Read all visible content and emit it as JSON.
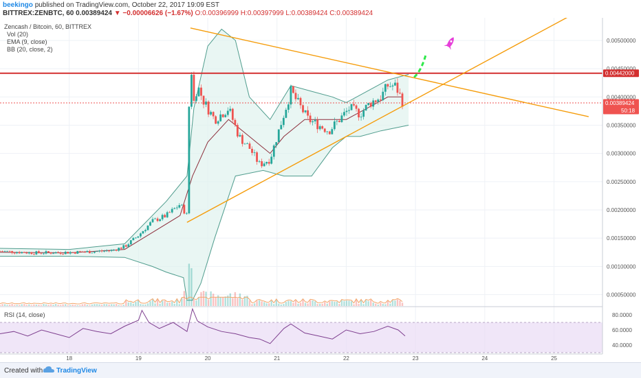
{
  "header": {
    "author": "beekingo",
    "published": "published on TradingView.com, October 22, 2017 19:09 EST",
    "symbol": "BITTREX:ZENBTC, 60",
    "price": "0.00389424",
    "change": "▼ −0.00006626 (−1.67%)",
    "open": "O:0.00396999",
    "high": "H:0.00397999",
    "low": "L:0.00389424",
    "close": "C:0.00389424"
  },
  "legend": {
    "title": "Zencash / Bitcoin, 60, BITTREX",
    "vol": "Vol (20)",
    "ema": "EMA (9, close)",
    "bb": "BB (20, close, 2)",
    "rsi": "RSI (14, close)"
  },
  "footer": {
    "created": "Created with",
    "brand": "TradingView"
  },
  "colors": {
    "up": "#26a69a",
    "down": "#ef5350",
    "bb": "#4f9c8d",
    "ema": "#8d2f3c",
    "trendline": "#f59c0a",
    "resistance": "#d32f2f",
    "rsi": "#7e3f8f",
    "rsi_band": "#eadcf5",
    "volume_ma": "#f2a66a"
  },
  "chart_data": {
    "type": "candlestick",
    "x_tick_labels": [
      "18",
      "19",
      "20",
      "21",
      "22",
      "23",
      "24",
      "25"
    ],
    "x_range_days": [
      17.0,
      25.7
    ],
    "price_ylim": [
      0.0003,
      0.0054
    ],
    "price_tick_labels": [
      "0.00500000",
      "0.00450000",
      "0.00400000",
      "0.00350000",
      "0.00300000",
      "0.00250000",
      "0.00200000",
      "0.00150000",
      "0.00100000",
      "0.00050000"
    ],
    "price_tick_values": [
      0.005,
      0.0045,
      0.004,
      0.0035,
      0.003,
      0.0025,
      0.002,
      0.0015,
      0.001,
      0.0005
    ],
    "last_price": {
      "value": 0.00389424,
      "label": "0.00389424",
      "countdown": "50:18"
    },
    "resistance": {
      "value": 0.00442,
      "label": "0.00442000"
    },
    "close_series": {
      "x": [
        17.0,
        17.5,
        18.0,
        18.3,
        18.6,
        18.8,
        19.0,
        19.2,
        19.4,
        19.6,
        19.7,
        19.72,
        19.75,
        19.78,
        19.85,
        19.95,
        20.1,
        20.3,
        20.45,
        20.6,
        20.75,
        20.9,
        21.05,
        21.2,
        21.3,
        21.45,
        21.6,
        21.75,
        21.9,
        22.05,
        22.2,
        22.35,
        22.5,
        22.6,
        22.7,
        22.75,
        22.82
      ],
      "y": [
        0.00127,
        0.00124,
        0.00125,
        0.00126,
        0.00128,
        0.00135,
        0.00155,
        0.0018,
        0.0019,
        0.0021,
        0.0019,
        0.0032,
        0.0051,
        0.0038,
        0.0042,
        0.0039,
        0.0036,
        0.0038,
        0.0033,
        0.0031,
        0.0028,
        0.0029,
        0.0035,
        0.0041,
        0.0039,
        0.0036,
        0.0035,
        0.0034,
        0.0036,
        0.0038,
        0.0037,
        0.0039,
        0.004,
        0.0042,
        0.0042,
        0.0041,
        0.00389
      ]
    },
    "bb_upper": {
      "x": [
        17.0,
        18.0,
        18.8,
        19.4,
        19.7,
        19.8,
        20.0,
        20.2,
        20.4,
        20.6,
        20.9,
        21.2,
        21.5,
        21.8,
        22.0,
        22.3,
        22.6,
        22.9
      ],
      "y": [
        0.00132,
        0.0013,
        0.0014,
        0.00215,
        0.0026,
        0.0038,
        0.0049,
        0.0052,
        0.005,
        0.004,
        0.0036,
        0.0042,
        0.0041,
        0.004,
        0.0039,
        0.0041,
        0.0043,
        0.0044
      ]
    },
    "bb_lower": {
      "x": [
        17.0,
        18.0,
        18.8,
        19.2,
        19.4,
        19.65,
        19.7,
        19.78,
        19.9,
        20.1,
        20.4,
        20.8,
        21.1,
        21.5,
        21.8,
        22.0,
        22.2,
        22.5,
        22.9
      ],
      "y": [
        0.00118,
        0.00118,
        0.00116,
        0.001,
        0.0009,
        0.0008,
        0.0004,
        0.0004,
        0.0007,
        0.0015,
        0.0026,
        0.0027,
        0.0026,
        0.0026,
        0.0031,
        0.0033,
        0.0033,
        0.0034,
        0.0035
      ]
    },
    "ema": {
      "x": [
        17.0,
        18.0,
        18.8,
        19.2,
        19.6,
        19.78,
        20.0,
        20.3,
        20.6,
        20.9,
        21.1,
        21.4,
        21.7,
        22.0,
        22.3,
        22.6,
        22.82
      ],
      "y": [
        0.00125,
        0.00124,
        0.0013,
        0.0016,
        0.0019,
        0.0026,
        0.0032,
        0.0036,
        0.0033,
        0.003,
        0.0033,
        0.0036,
        0.0036,
        0.0036,
        0.0038,
        0.004,
        0.004
      ]
    },
    "trendlines": [
      {
        "name": "",
        "x": [
          19.75,
          25.5
        ],
        "y": [
          0.00522,
          0.00365
        ]
      },
      {
        "name": "",
        "x": [
          19.7,
          25.3
        ],
        "y": [
          0.00178,
          0.00548
        ]
      }
    ],
    "projection": {
      "x": [
        22.98,
        23.15
      ],
      "y": [
        0.00435,
        0.00475
      ]
    },
    "rsi": {
      "ylim": [
        30,
        90
      ],
      "tick_values": [
        80,
        60,
        40
      ],
      "tick_labels": [
        "80.0000",
        "60.0000",
        "40.0000"
      ],
      "band": [
        30,
        70
      ],
      "x": [
        17.0,
        17.2,
        17.4,
        17.6,
        17.8,
        18.0,
        18.2,
        18.4,
        18.6,
        18.8,
        19.0,
        19.05,
        19.15,
        19.3,
        19.5,
        19.7,
        19.78,
        19.85,
        20.0,
        20.2,
        20.4,
        20.6,
        20.75,
        20.9,
        21.1,
        21.2,
        21.4,
        21.6,
        21.8,
        22.0,
        22.2,
        22.4,
        22.6,
        22.75,
        22.85
      ],
      "y": [
        55,
        58,
        52,
        60,
        55,
        50,
        62,
        58,
        55,
        65,
        73,
        86,
        70,
        62,
        70,
        58,
        88,
        72,
        64,
        58,
        55,
        50,
        48,
        42,
        62,
        68,
        56,
        52,
        48,
        60,
        55,
        58,
        65,
        60,
        52
      ]
    }
  }
}
